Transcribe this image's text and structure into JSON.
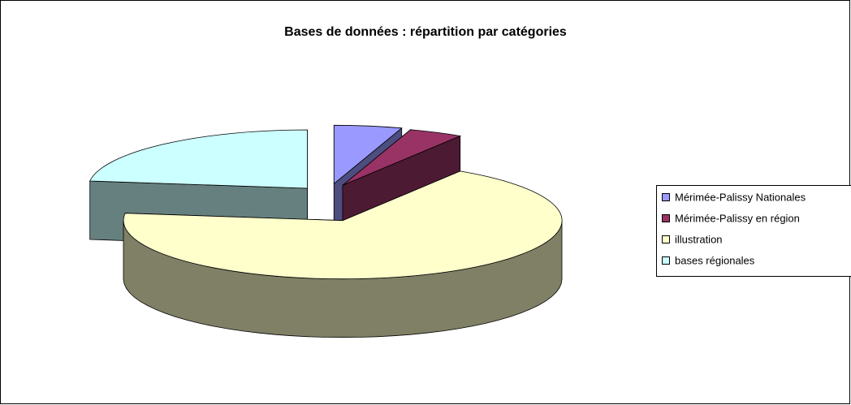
{
  "chart_data": {
    "type": "pie3d",
    "title": "Bases de données : répartition par catégories",
    "categories": [
      "Mérimée-Palissy Nationales",
      "Mérimée-Palissy en région",
      "illustration",
      "bases régionales"
    ],
    "values": [
      5,
      4,
      68,
      23
    ],
    "colors": [
      "#9999ff",
      "#993366",
      "#ffffcc",
      "#ccffff"
    ],
    "legend": "right"
  }
}
